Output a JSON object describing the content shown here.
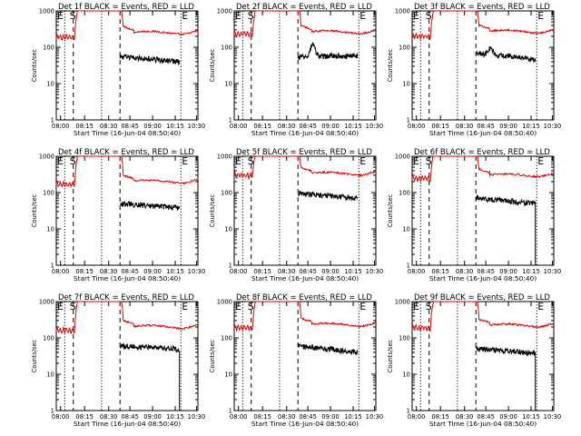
{
  "chart_data": {
    "type": "line",
    "layout": "3x3 grid",
    "yscale": "log",
    "ylim": [
      1,
      1000
    ],
    "xlim_labels": [
      "08:00",
      "10:30"
    ],
    "xlabel": "Start Time (16-Jun-04 08:50:40)",
    "ylabel": "Counts/sec",
    "x_ticks": [
      "08:00",
      "08:15",
      "08:30",
      "08:45",
      "09:00",
      "10:15",
      "10:30"
    ],
    "y_ticks": [
      "1",
      "10",
      "100",
      "1000"
    ],
    "series_colors": {
      "events": "#000000",
      "lld": "#e00000"
    },
    "markers": {
      "start": "E",
      "saa": "S",
      "end": "E"
    },
    "panels": [
      {
        "title": "Det 1f BLACK = Events, RED = LLD",
        "lld_base": 250,
        "lld_pre": 190,
        "events_base": 55,
        "events_end": 40,
        "events_bump": 0,
        "drop": false
      },
      {
        "title": "Det 2f BLACK = Events, RED = LLD",
        "lld_base": 260,
        "lld_pre": 230,
        "events_base": 55,
        "events_end": 60,
        "events_bump": 60,
        "drop": false
      },
      {
        "title": "Det 3f BLACK = Events, RED = LLD",
        "lld_base": 270,
        "lld_pre": 200,
        "events_base": 70,
        "events_end": 45,
        "events_bump": 30,
        "drop": false
      },
      {
        "title": "Det 4f BLACK = Events, RED = LLD",
        "lld_base": 200,
        "lld_pre": 170,
        "events_base": 50,
        "events_end": 38,
        "events_bump": 0,
        "drop": false
      },
      {
        "title": "Det 5f BLACK = Events, RED = LLD",
        "lld_base": 330,
        "lld_pre": 300,
        "events_base": 95,
        "events_end": 70,
        "events_bump": 0,
        "drop": false
      },
      {
        "title": "Det 6f BLACK = Events, RED = LLD",
        "lld_base": 300,
        "lld_pre": 250,
        "events_base": 70,
        "events_end": 50,
        "events_bump": 0,
        "drop": true
      },
      {
        "title": "Det 7f BLACK = Events, RED = LLD",
        "lld_base": 200,
        "lld_pre": 160,
        "events_base": 60,
        "events_end": 50,
        "events_bump": 0,
        "drop": true
      },
      {
        "title": "Det 8f BLACK = Events, RED = LLD",
        "lld_base": 230,
        "lld_pre": 190,
        "events_base": 60,
        "events_end": 40,
        "events_bump": 0,
        "drop": false
      },
      {
        "title": "Det 9f BLACK = Events, RED = LLD",
        "lld_base": 220,
        "lld_pre": 190,
        "events_base": 50,
        "events_end": 38,
        "events_bump": 0,
        "drop": true
      }
    ]
  }
}
